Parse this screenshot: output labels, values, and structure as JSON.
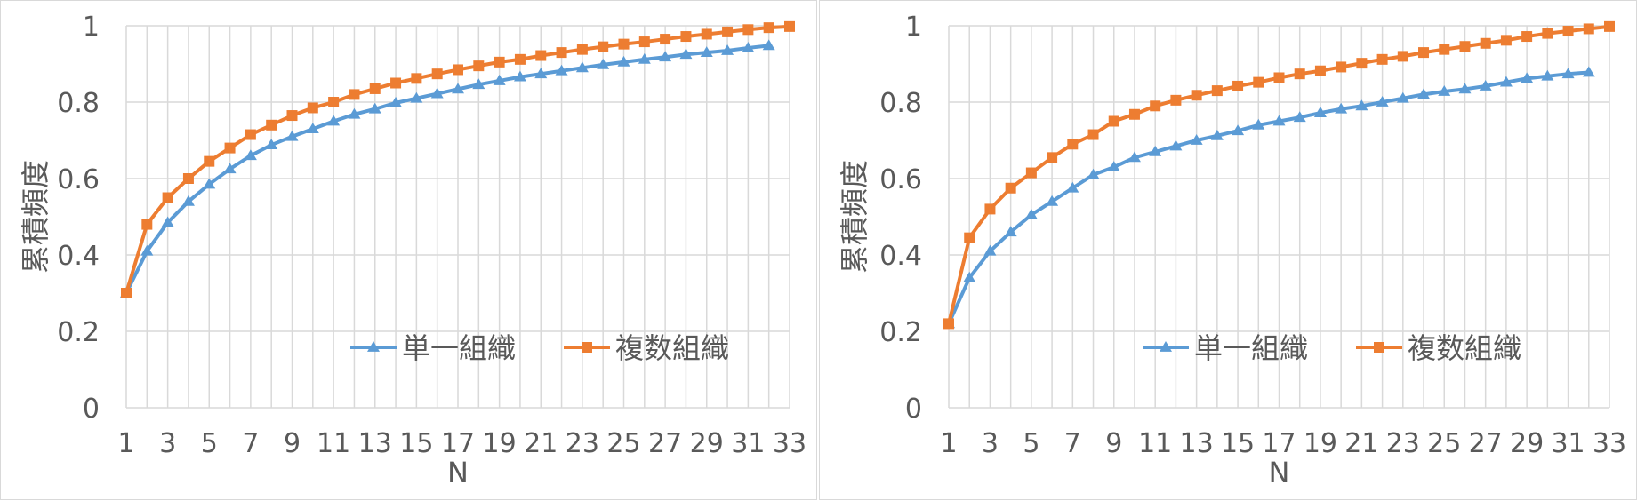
{
  "chart_data": [
    {
      "type": "line",
      "title": "",
      "xlabel": "N",
      "ylabel": "累積頻度",
      "ylim": [
        0,
        1
      ],
      "yticks": [
        "0",
        "0.2",
        "0.4",
        "0.6",
        "0.8",
        "1"
      ],
      "xlim": [
        1,
        33
      ],
      "xticks": [
        "1",
        "3",
        "5",
        "7",
        "9",
        "11",
        "13",
        "15",
        "17",
        "19",
        "21",
        "23",
        "25",
        "27",
        "29",
        "31",
        "33"
      ],
      "grid": "vertical and horizontal",
      "legend_position": "lower-right",
      "series": [
        {
          "name": "単一組織",
          "color": "#5b9bd5",
          "marker": "triangle",
          "x": [
            1,
            2,
            3,
            4,
            5,
            6,
            7,
            8,
            9,
            10,
            11,
            12,
            13,
            14,
            15,
            16,
            17,
            18,
            19,
            20,
            21,
            22,
            23,
            24,
            25,
            26,
            27,
            28,
            29,
            30,
            31,
            32
          ],
          "values": [
            0.3,
            0.41,
            0.485,
            0.54,
            0.585,
            0.625,
            0.66,
            0.688,
            0.71,
            0.73,
            0.75,
            0.768,
            0.782,
            0.798,
            0.81,
            0.822,
            0.834,
            0.846,
            0.856,
            0.866,
            0.874,
            0.882,
            0.89,
            0.898,
            0.905,
            0.912,
            0.918,
            0.925,
            0.93,
            0.935,
            0.942,
            0.948
          ]
        },
        {
          "name": "複数組織",
          "color": "#ed7d31",
          "marker": "square",
          "x": [
            1,
            2,
            3,
            4,
            5,
            6,
            7,
            8,
            9,
            10,
            11,
            12,
            13,
            14,
            15,
            16,
            17,
            18,
            19,
            20,
            21,
            22,
            23,
            24,
            25,
            26,
            27,
            28,
            29,
            30,
            31,
            32,
            33
          ],
          "values": [
            0.3,
            0.48,
            0.55,
            0.6,
            0.645,
            0.68,
            0.715,
            0.74,
            0.765,
            0.785,
            0.8,
            0.82,
            0.835,
            0.85,
            0.862,
            0.874,
            0.885,
            0.895,
            0.905,
            0.912,
            0.922,
            0.93,
            0.938,
            0.945,
            0.952,
            0.958,
            0.965,
            0.972,
            0.978,
            0.984,
            0.99,
            0.995,
            0.998
          ]
        }
      ]
    },
    {
      "type": "line",
      "title": "",
      "xlabel": "N",
      "ylabel": "累積頻度",
      "ylim": [
        0,
        1
      ],
      "yticks": [
        "0",
        "0.2",
        "0.4",
        "0.6",
        "0.8",
        "1"
      ],
      "xlim": [
        1,
        33
      ],
      "xticks": [
        "1",
        "3",
        "5",
        "7",
        "9",
        "11",
        "13",
        "15",
        "17",
        "19",
        "21",
        "23",
        "25",
        "27",
        "29",
        "31",
        "33"
      ],
      "grid": "vertical and horizontal",
      "legend_position": "lower-right",
      "series": [
        {
          "name": "単一組織",
          "color": "#5b9bd5",
          "marker": "triangle",
          "x": [
            1,
            2,
            3,
            4,
            5,
            6,
            7,
            8,
            9,
            10,
            11,
            12,
            13,
            14,
            15,
            16,
            17,
            18,
            19,
            20,
            21,
            22,
            23,
            24,
            25,
            26,
            27,
            28,
            29,
            30,
            31,
            32
          ],
          "values": [
            0.22,
            0.34,
            0.41,
            0.46,
            0.505,
            0.54,
            0.575,
            0.61,
            0.63,
            0.655,
            0.67,
            0.685,
            0.7,
            0.712,
            0.725,
            0.74,
            0.75,
            0.76,
            0.772,
            0.782,
            0.79,
            0.8,
            0.81,
            0.82,
            0.828,
            0.834,
            0.842,
            0.852,
            0.862,
            0.868,
            0.874,
            0.878
          ]
        },
        {
          "name": "複数組織",
          "color": "#ed7d31",
          "marker": "square",
          "x": [
            1,
            2,
            3,
            4,
            5,
            6,
            7,
            8,
            9,
            10,
            11,
            12,
            13,
            14,
            15,
            16,
            17,
            18,
            19,
            20,
            21,
            22,
            23,
            24,
            25,
            26,
            27,
            28,
            29,
            30,
            31,
            32,
            33
          ],
          "values": [
            0.22,
            0.445,
            0.52,
            0.575,
            0.615,
            0.655,
            0.69,
            0.715,
            0.75,
            0.768,
            0.79,
            0.805,
            0.818,
            0.83,
            0.842,
            0.852,
            0.864,
            0.874,
            0.882,
            0.892,
            0.902,
            0.912,
            0.92,
            0.93,
            0.938,
            0.946,
            0.954,
            0.962,
            0.972,
            0.98,
            0.986,
            0.992,
            0.998
          ]
        }
      ]
    }
  ]
}
